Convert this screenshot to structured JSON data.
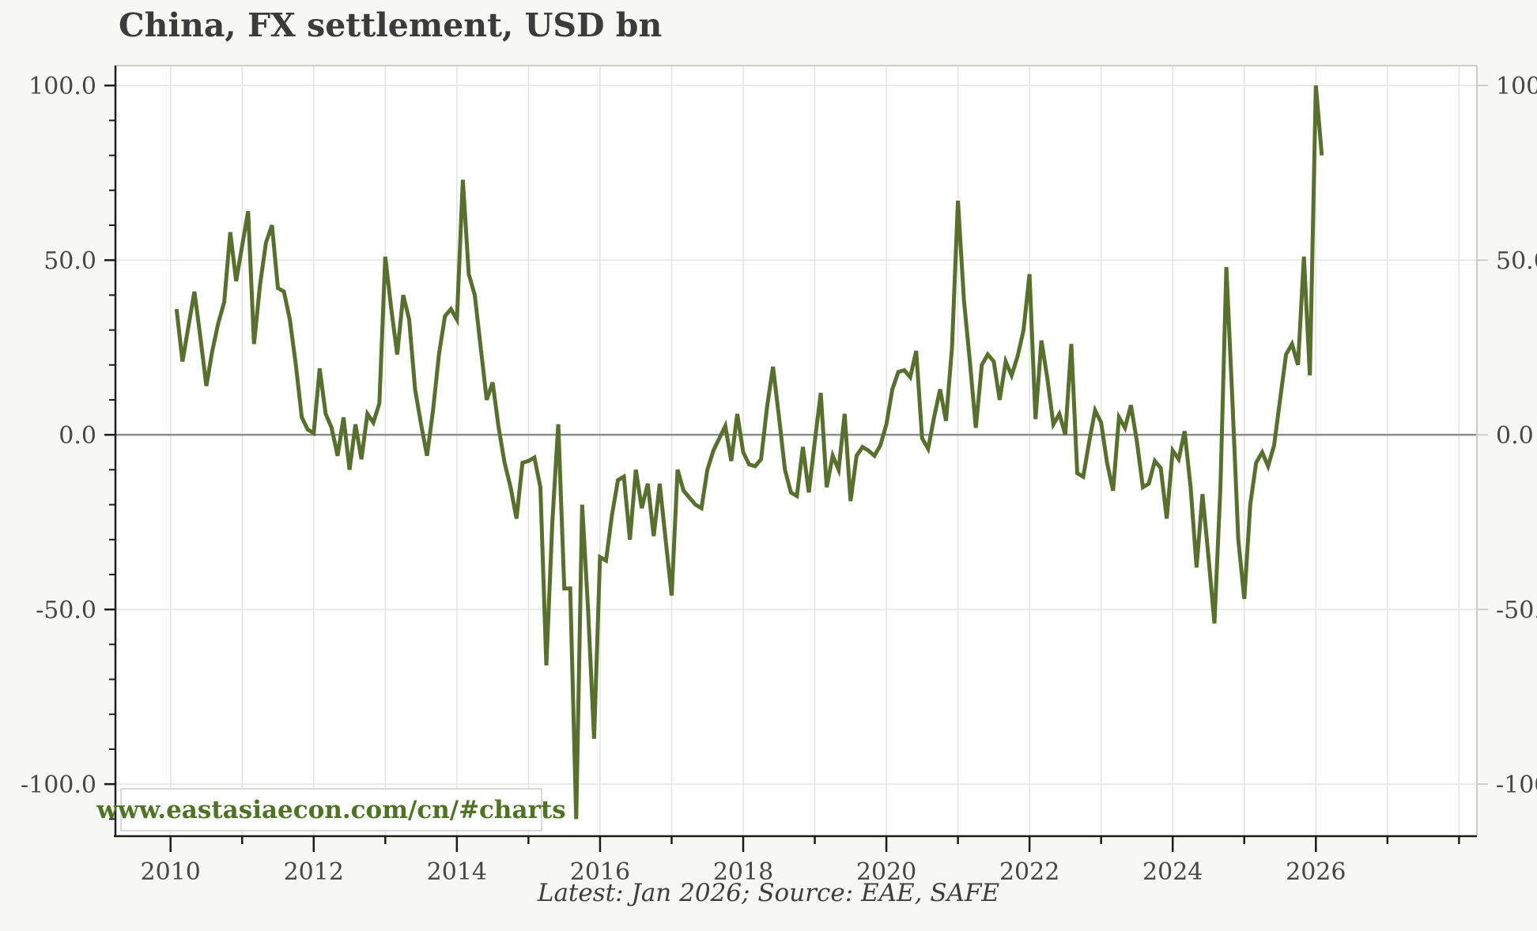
{
  "header": {
    "title": "China, FX settlement, USD bn"
  },
  "watermark": {
    "text": "www.eastasiaecon.com/cn/#charts",
    "color": "#4f7325"
  },
  "footer": {
    "text": "Latest: Jan 2026; Source: EAE, SAFE"
  },
  "colors": {
    "line": "#57702e",
    "background": "#f7f7f4",
    "plot_background": "#ffffff",
    "grid": "#e4e4e2",
    "zero_line": "#8c8c8c",
    "spine_dark": "#1c1c1c",
    "frame_light": "#cccccb",
    "tick_text": "#474747"
  },
  "chart_data": {
    "type": "line",
    "title": "China, FX settlement, USD bn",
    "xlabel": "",
    "ylabel": "USD bn",
    "frequency": "monthly",
    "start": "2010-01",
    "end": "2026-01",
    "xlim_years": [
      2009.23,
      2028.25
    ],
    "ylim": [
      -114.9,
      105.7
    ],
    "grid": "on",
    "legend_position": "none",
    "x_year_ticks_labeled": [
      2010,
      2012,
      2014,
      2016,
      2018,
      2020,
      2022,
      2024,
      2026
    ],
    "x_year_ticks_all": [
      2010,
      2011,
      2012,
      2013,
      2014,
      2015,
      2016,
      2017,
      2018,
      2019,
      2020,
      2021,
      2022,
      2023,
      2024,
      2025,
      2026,
      2027,
      2028
    ],
    "y_major_ticks": [
      100,
      50,
      0,
      -50,
      -100
    ],
    "y_major_tick_labels": [
      "100.0",
      "50.0",
      "0.0",
      "-50.0",
      "-100.0"
    ],
    "y_minor_step": 10,
    "series": [
      {
        "name": "China FX settlement, USD bn",
        "color": "#57702e",
        "values": [
          36,
          21,
          31,
          41,
          28,
          14,
          24,
          32,
          38,
          58,
          44,
          54,
          64,
          26,
          43,
          55,
          60,
          42,
          41,
          33,
          20,
          5,
          1.5,
          0.5,
          19,
          6,
          2,
          -6,
          5,
          -10,
          3,
          -7,
          6,
          3.5,
          9,
          51,
          36,
          23,
          40,
          33,
          13,
          3,
          -6,
          7,
          23,
          34,
          36,
          33,
          73,
          46,
          40,
          25,
          10,
          15,
          2,
          -8,
          -15,
          -24,
          -8,
          -7.5,
          -6.5,
          -15,
          -66,
          -25,
          3,
          -44,
          -44,
          -110,
          -20,
          -50,
          -87,
          -35,
          -36,
          -23,
          -13,
          -12,
          -30,
          -10,
          -21,
          -14,
          -29,
          -14,
          -30,
          -46,
          -10,
          -16,
          -18,
          -20,
          -21,
          -10,
          -4.5,
          -1,
          2.5,
          -7.5,
          6,
          -5,
          -8.5,
          -9,
          -7,
          8,
          19.5,
          5,
          -10,
          -16.5,
          -17.5,
          -3.5,
          -16.5,
          -2,
          12,
          -15,
          -6,
          -10,
          6,
          -19,
          -6,
          -3.5,
          -4.5,
          -6,
          -3,
          3,
          13,
          18,
          18.5,
          16.5,
          24,
          -1,
          -4,
          5,
          13,
          4,
          25,
          67,
          38.5,
          21,
          2,
          20,
          23,
          21,
          10,
          21,
          17,
          22.5,
          30,
          46,
          4.5,
          27,
          16,
          3,
          6,
          0,
          26,
          -11,
          -12,
          -2,
          7,
          3.5,
          -8,
          -16,
          5,
          2,
          8.5,
          -2,
          -15,
          -14,
          -7.5,
          -9.5,
          -24,
          -4.5,
          -7,
          1,
          -15,
          -38,
          -17,
          -35,
          -54,
          -15,
          48,
          10,
          -30,
          -47,
          -20,
          -8,
          -5,
          -9,
          -3,
          10,
          23,
          26,
          20,
          51,
          17,
          100,
          80
        ]
      }
    ]
  }
}
